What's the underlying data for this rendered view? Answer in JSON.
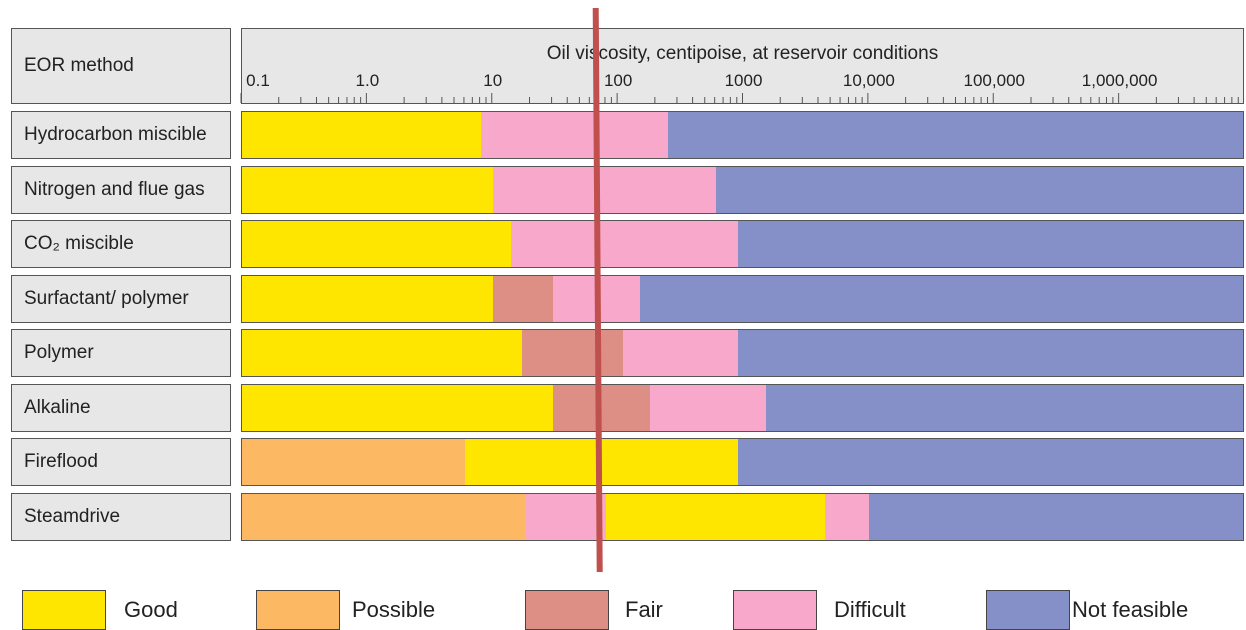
{
  "chart_data": {
    "type": "bar",
    "orientation": "horizontal-range",
    "header_label": "EOR method",
    "xlabel": "Oil viscosity, centipoise, at reservoir conditions",
    "xscale": "log",
    "xlim": [
      0.1,
      10000000
    ],
    "tick_labels": [
      {
        "label": "0.1",
        "value": 0.1
      },
      {
        "label": "1.0",
        "value": 1
      },
      {
        "label": "10",
        "value": 10
      },
      {
        "label": "100",
        "value": 100
      },
      {
        "label": "1000",
        "value": 1000
      },
      {
        "label": "10,000",
        "value": 10000
      },
      {
        "label": "100,000",
        "value": 100000
      },
      {
        "label": "1,000,000",
        "value": 1000000
      }
    ],
    "categories": [
      {
        "name": "Good",
        "color": "#ffe600"
      },
      {
        "name": "Possible",
        "color": "#fdb863"
      },
      {
        "name": "Fair",
        "color": "#de8f85"
      },
      {
        "name": "Difficult",
        "color": "#f7a8cb"
      },
      {
        "name": "Not feasible",
        "color": "#8590c9"
      }
    ],
    "methods": [
      {
        "label": "Hydrocarbon miscible",
        "segments": [
          {
            "rating": "Good",
            "from": 0.1,
            "to": 8
          },
          {
            "rating": "Difficult",
            "from": 8,
            "to": 250
          },
          {
            "rating": "Not feasible",
            "from": 250,
            "to": 10000000
          }
        ]
      },
      {
        "label": "Nitrogen and flue gas",
        "segments": [
          {
            "rating": "Good",
            "from": 0.1,
            "to": 10
          },
          {
            "rating": "Difficult",
            "from": 10,
            "to": 600
          },
          {
            "rating": "Not feasible",
            "from": 600,
            "to": 10000000
          }
        ]
      },
      {
        "label": "CO₂ miscible",
        "segments": [
          {
            "rating": "Good",
            "from": 0.1,
            "to": 14
          },
          {
            "rating": "Difficult",
            "from": 14,
            "to": 900
          },
          {
            "rating": "Not feasible",
            "from": 900,
            "to": 10000000
          }
        ]
      },
      {
        "label": "Surfactant/ polymer",
        "segments": [
          {
            "rating": "Good",
            "from": 0.1,
            "to": 10
          },
          {
            "rating": "Fair",
            "from": 10,
            "to": 30
          },
          {
            "rating": "Difficult",
            "from": 30,
            "to": 150
          },
          {
            "rating": "Not feasible",
            "from": 150,
            "to": 10000000
          }
        ]
      },
      {
        "label": "Polymer",
        "segments": [
          {
            "rating": "Good",
            "from": 0.1,
            "to": 17
          },
          {
            "rating": "Fair",
            "from": 17,
            "to": 110
          },
          {
            "rating": "Difficult",
            "from": 110,
            "to": 900
          },
          {
            "rating": "Not feasible",
            "from": 900,
            "to": 10000000
          }
        ]
      },
      {
        "label": "Alkaline",
        "segments": [
          {
            "rating": "Good",
            "from": 0.1,
            "to": 30
          },
          {
            "rating": "Fair",
            "from": 30,
            "to": 180
          },
          {
            "rating": "Difficult",
            "from": 180,
            "to": 1500
          },
          {
            "rating": "Not feasible",
            "from": 1500,
            "to": 10000000
          }
        ]
      },
      {
        "label": "Fireflood",
        "segments": [
          {
            "rating": "Possible",
            "from": 0.1,
            "to": 6
          },
          {
            "rating": "Good",
            "from": 6,
            "to": 900
          },
          {
            "rating": "Not feasible",
            "from": 900,
            "to": 10000000
          }
        ]
      },
      {
        "label": "Steamdrive",
        "segments": [
          {
            "rating": "Possible",
            "from": 0.1,
            "to": 18
          },
          {
            "rating": "Difficult",
            "from": 18,
            "to": 80
          },
          {
            "rating": "Good",
            "from": 80,
            "to": 4500
          },
          {
            "rating": "Difficult",
            "from": 4500,
            "to": 10000
          },
          {
            "rating": "Not feasible",
            "from": 10000,
            "to": 10000000
          }
        ]
      }
    ],
    "annotations": [
      {
        "type": "vertical-line",
        "value": 70,
        "color": "#c0504d"
      }
    ]
  }
}
